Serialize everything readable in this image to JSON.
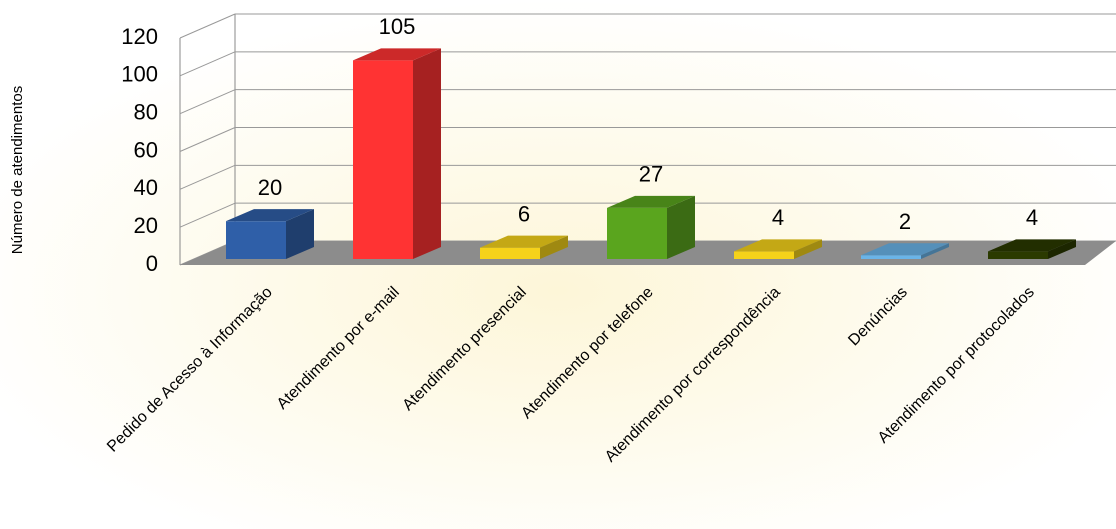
{
  "chart_data": {
    "type": "bar3d",
    "y_axis_label": "Número de atendimentos",
    "categories": [
      "Pedido de Acesso à Informação",
      "Atendimento por e-mail",
      "Atendimento presencial",
      "Atendimento por telefone",
      "Atendimento por correspondência",
      "Denúncias",
      "Atendimento por protocolados"
    ],
    "values": [
      20,
      105,
      6,
      27,
      4,
      2,
      4
    ],
    "colors": [
      "#2f5fa8",
      "#ff3333",
      "#f5d21a",
      "#5aa51e",
      "#f5d21a",
      "#6ab4e8",
      "#2b3a00"
    ],
    "ylim": [
      0,
      120
    ],
    "yticks": [
      0,
      20,
      40,
      60,
      80,
      100,
      120
    ],
    "grid": true
  }
}
